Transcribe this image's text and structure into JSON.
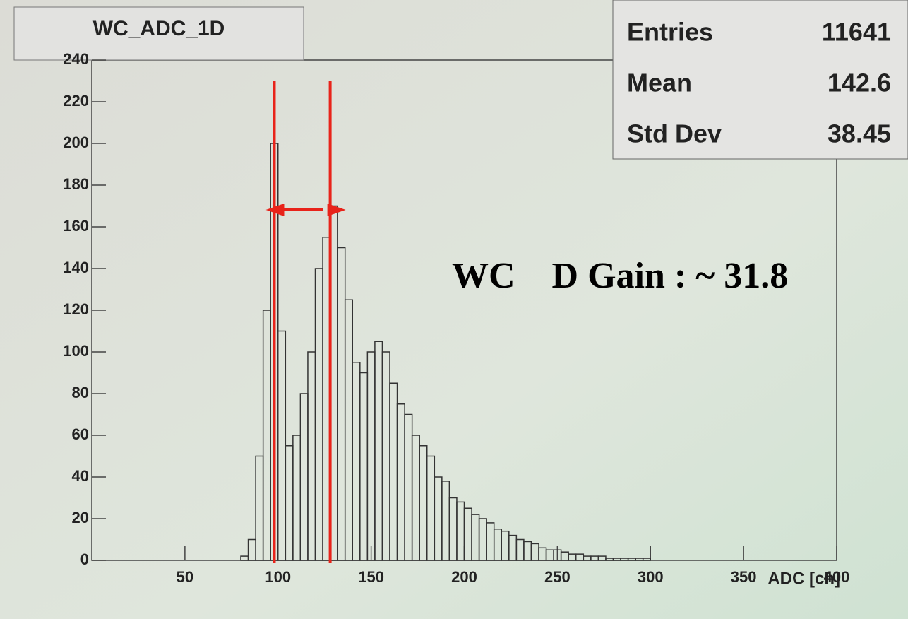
{
  "chart_data": {
    "type": "histogram",
    "title": "WC_ADC_1D",
    "x_label": "ADC [ch]",
    "bins": [
      80,
      84,
      88,
      92,
      96,
      100,
      104,
      108,
      112,
      116,
      120,
      124,
      128,
      132,
      136,
      140,
      144,
      148,
      152,
      156,
      160,
      164,
      168,
      172,
      176,
      180,
      184,
      188,
      192,
      196,
      200,
      204,
      208,
      212,
      216,
      220,
      224,
      228,
      232,
      236,
      240,
      244,
      248,
      252,
      256,
      260,
      264,
      268,
      272,
      276,
      280,
      284,
      288,
      292,
      296,
      300
    ],
    "values": [
      2,
      10,
      50,
      120,
      200,
      110,
      55,
      60,
      80,
      100,
      140,
      155,
      170,
      150,
      125,
      95,
      90,
      100,
      105,
      100,
      85,
      75,
      70,
      60,
      55,
      50,
      40,
      38,
      30,
      28,
      25,
      22,
      20,
      18,
      15,
      14,
      12,
      10,
      9,
      8,
      6,
      5,
      5,
      4,
      3,
      3,
      2,
      2,
      2,
      1,
      1,
      1,
      1,
      1,
      1
    ],
    "color": "#333333",
    "xlim": [
      0,
      400
    ],
    "xticks": [
      50,
      100,
      150,
      200,
      250,
      300,
      350,
      400
    ],
    "ylim": [
      0,
      240
    ],
    "yticks": [
      0,
      20,
      40,
      60,
      80,
      100,
      120,
      140,
      160,
      180,
      200,
      220,
      240
    ],
    "stats": [
      [
        "Entries",
        11641
      ],
      [
        "Mean",
        142.6
      ],
      [
        "Std Dev",
        38.45
      ]
    ],
    "annotation": "WC    D Gain : ~ 31.8",
    "markers": [
      98,
      128
    ],
    "marker_color": "#e8231a"
  }
}
